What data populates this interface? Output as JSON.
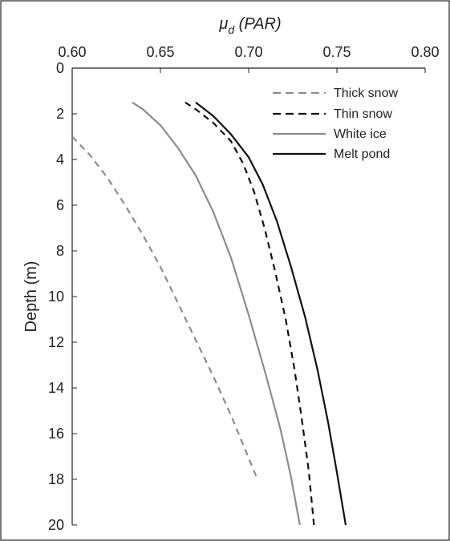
{
  "chart_data": {
    "type": "line",
    "xlabel": "μd (PAR)",
    "xlabel_main": "μ",
    "xlabel_sub": "d",
    "xlabel_suffix": " (PAR)",
    "ylabel": "Depth (m)",
    "xlim": [
      0.6,
      0.8
    ],
    "ylim": [
      0,
      20
    ],
    "x_ticks": [
      "0.60",
      "0.65",
      "0.70",
      "0.75",
      "0.80"
    ],
    "y_ticks": [
      "0",
      "2",
      "4",
      "6",
      "8",
      "10",
      "12",
      "14",
      "16",
      "18",
      "20"
    ],
    "x_axis_position": "top",
    "y_reversed": true,
    "grid": false,
    "legend_position": "top-right",
    "series": [
      {
        "name": "Thick snow",
        "color": "#8c8c8c",
        "dash": "dashed",
        "points": [
          [
            0.6,
            3.0
          ],
          [
            0.61,
            3.8
          ],
          [
            0.62,
            4.8
          ],
          [
            0.63,
            6.0
          ],
          [
            0.64,
            7.3
          ],
          [
            0.65,
            8.7
          ],
          [
            0.66,
            10.3
          ],
          [
            0.67,
            11.9
          ],
          [
            0.68,
            13.5
          ],
          [
            0.69,
            15.2
          ],
          [
            0.698,
            16.7
          ],
          [
            0.705,
            18.0
          ]
        ]
      },
      {
        "name": "Thin snow",
        "color": "#111111",
        "dash": "dashed",
        "points": [
          [
            0.664,
            1.5
          ],
          [
            0.67,
            1.8
          ],
          [
            0.68,
            2.4
          ],
          [
            0.69,
            3.2
          ],
          [
            0.697,
            4.2
          ],
          [
            0.703,
            5.4
          ],
          [
            0.709,
            7.0
          ],
          [
            0.715,
            8.9
          ],
          [
            0.721,
            11.0
          ],
          [
            0.726,
            13.2
          ],
          [
            0.73,
            15.3
          ],
          [
            0.734,
            17.6
          ],
          [
            0.737,
            20.0
          ]
        ]
      },
      {
        "name": "White ice",
        "color": "#8c8c8c",
        "dash": "solid",
        "points": [
          [
            0.634,
            1.5
          ],
          [
            0.64,
            1.8
          ],
          [
            0.65,
            2.5
          ],
          [
            0.66,
            3.5
          ],
          [
            0.67,
            4.7
          ],
          [
            0.68,
            6.3
          ],
          [
            0.69,
            8.3
          ],
          [
            0.7,
            10.8
          ],
          [
            0.71,
            13.5
          ],
          [
            0.718,
            15.8
          ],
          [
            0.724,
            17.9
          ],
          [
            0.729,
            20.0
          ]
        ]
      },
      {
        "name": "Melt pond",
        "color": "#111111",
        "dash": "solid",
        "points": [
          [
            0.67,
            1.5
          ],
          [
            0.68,
            2.1
          ],
          [
            0.69,
            2.9
          ],
          [
            0.7,
            3.9
          ],
          [
            0.708,
            5.1
          ],
          [
            0.716,
            6.7
          ],
          [
            0.724,
            8.7
          ],
          [
            0.732,
            10.9
          ],
          [
            0.739,
            13.2
          ],
          [
            0.745,
            15.5
          ],
          [
            0.75,
            17.7
          ],
          [
            0.755,
            20.0
          ]
        ]
      }
    ]
  }
}
